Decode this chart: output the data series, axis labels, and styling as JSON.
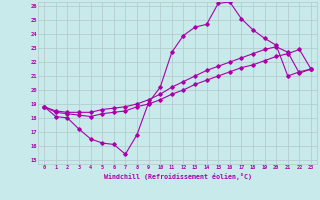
{
  "xlabel": "Windchill (Refroidissement éolien,°C)",
  "bg_color": "#c8eaea",
  "grid_color": "#b0c8c8",
  "line_color": "#aa00aa",
  "hours": [
    0,
    1,
    2,
    3,
    4,
    5,
    6,
    7,
    8,
    9,
    10,
    11,
    12,
    13,
    14,
    15,
    16,
    17,
    18,
    19,
    20,
    21,
    22,
    23
  ],
  "curve1": [
    18.8,
    18.1,
    18.0,
    17.2,
    16.5,
    16.2,
    16.1,
    15.4,
    16.8,
    19.1,
    20.2,
    22.7,
    23.9,
    24.5,
    24.7,
    26.2,
    26.3,
    25.1,
    24.3,
    23.7,
    23.2,
    21.0,
    21.3,
    21.5
  ],
  "curve2": [
    18.8,
    18.4,
    18.3,
    18.2,
    18.1,
    18.3,
    18.4,
    18.5,
    18.8,
    19.0,
    19.3,
    19.7,
    20.0,
    20.4,
    20.7,
    21.0,
    21.3,
    21.6,
    21.8,
    22.1,
    22.4,
    22.6,
    22.9,
    21.5
  ],
  "curve3": [
    18.8,
    18.5,
    18.4,
    18.4,
    18.4,
    18.6,
    18.7,
    18.8,
    19.0,
    19.3,
    19.7,
    20.2,
    20.6,
    21.0,
    21.4,
    21.7,
    22.0,
    22.3,
    22.6,
    22.9,
    23.1,
    22.7,
    21.2,
    21.5
  ],
  "ylim": [
    15,
    26
  ],
  "yticks": [
    15,
    16,
    17,
    18,
    19,
    20,
    21,
    22,
    23,
    24,
    25,
    26
  ],
  "xlim": [
    0,
    23
  ]
}
